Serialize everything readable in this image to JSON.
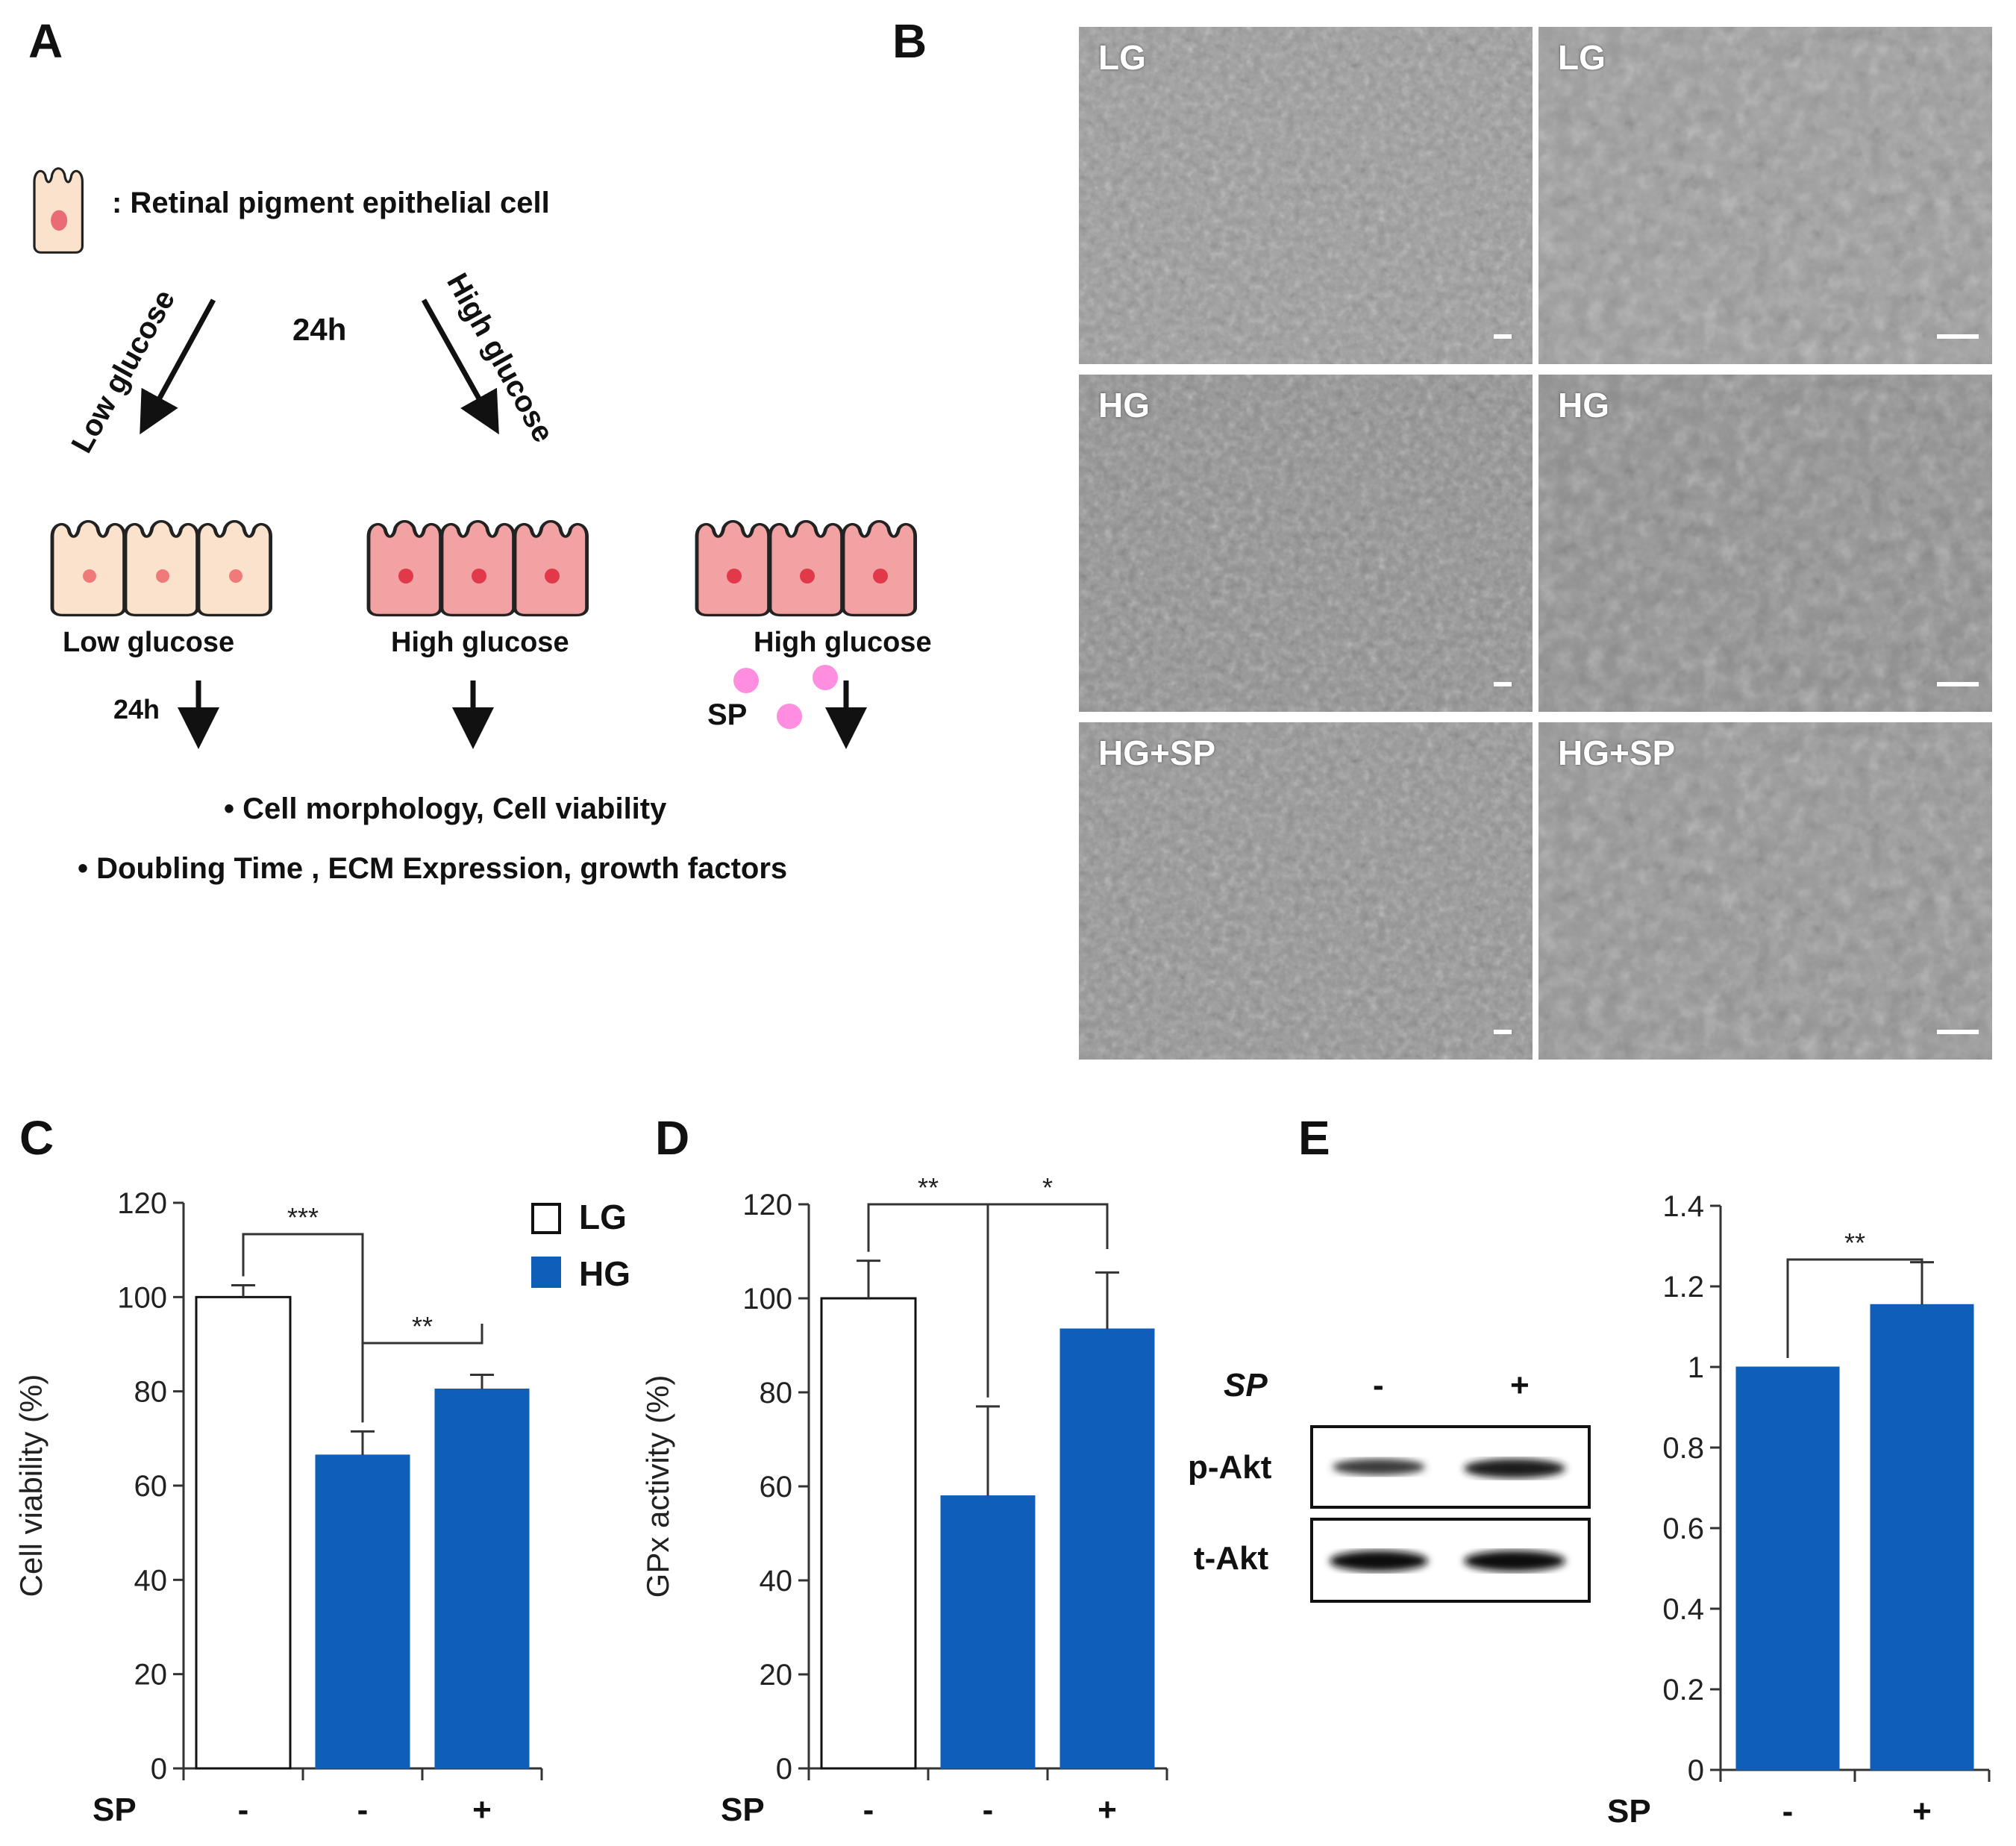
{
  "colors": {
    "hg_blue": "#0f5fb8",
    "cell_light": "#fbe2cc",
    "cell_pink": "#f2a2a2",
    "nucleus": "#e2394a",
    "sp_dot": "#ff8ee0"
  },
  "panels": {
    "A": "A",
    "B": "B",
    "C": "C",
    "D": "D",
    "E": "E"
  },
  "panelA": {
    "legend_text": ": Retinal  pigment  epithelial  cell",
    "arrow_low": "Low glucose",
    "arrow_high": "High glucose",
    "time_top": "24h",
    "group1_label": "Low glucose",
    "group2_label": "High glucose",
    "group3_label": "High glucose",
    "time_bottom": "24h",
    "sp_label": "SP",
    "bullet1": "•  Cell morphology,  Cell viability",
    "bullet2": "•  Doubling Time , ECM Expression,  growth factors"
  },
  "panelB": {
    "rows": [
      {
        "left": "LG",
        "right": "LG"
      },
      {
        "left": "HG",
        "right": "HG"
      },
      {
        "left": "HG+SP",
        "right": "HG+SP"
      }
    ]
  },
  "chart_data": [
    {
      "panel": "C",
      "type": "bar",
      "ylabel": "Cell viability  (%)",
      "ylim": [
        0,
        120
      ],
      "yticks": [
        0,
        20,
        40,
        60,
        80,
        100,
        120
      ],
      "x_row_label": "SP",
      "categories": [
        "-",
        "-",
        "+"
      ],
      "values": [
        100,
        66.5,
        80.5
      ],
      "errors": [
        2.5,
        5,
        3
      ],
      "bar_groups": [
        "LG",
        "HG",
        "HG"
      ],
      "legend": [
        "LG",
        "HG"
      ],
      "significance": [
        {
          "from": 0,
          "to": 1,
          "label": "***"
        },
        {
          "from": 1,
          "to": 2,
          "label": "**"
        }
      ]
    },
    {
      "panel": "D",
      "type": "bar",
      "ylabel": "GPx activity  (%)",
      "ylim": [
        0,
        120
      ],
      "yticks": [
        0,
        20,
        40,
        60,
        80,
        100,
        120
      ],
      "x_row_label": "SP",
      "categories": [
        "-",
        "-",
        "+"
      ],
      "values": [
        100,
        58,
        93.5
      ],
      "errors": [
        8,
        19,
        12
      ],
      "bar_groups": [
        "LG",
        "HG",
        "HG"
      ],
      "significance": [
        {
          "from": 0,
          "to": 1,
          "label": "**"
        },
        {
          "from": 1,
          "to": 2,
          "label": "*"
        }
      ]
    },
    {
      "panel": "E",
      "type": "bar",
      "ylabel": "",
      "ylim": [
        0,
        1.4
      ],
      "yticks": [
        "0",
        "0.2",
        "0.4",
        "0.6",
        "0.8",
        "1",
        "1.2",
        "1.4"
      ],
      "x_row_label": "SP",
      "categories": [
        "-",
        "+"
      ],
      "values": [
        1.0,
        1.155
      ],
      "errors": [
        0,
        0.105
      ],
      "bar_groups": [
        "HG",
        "HG"
      ],
      "significance": [
        {
          "from": 0,
          "to": 1,
          "label": "**"
        }
      ]
    }
  ],
  "blot": {
    "sp_label": "SP",
    "lanes": [
      "-",
      "+"
    ],
    "rows": [
      "p-Akt",
      "t-Akt"
    ]
  }
}
